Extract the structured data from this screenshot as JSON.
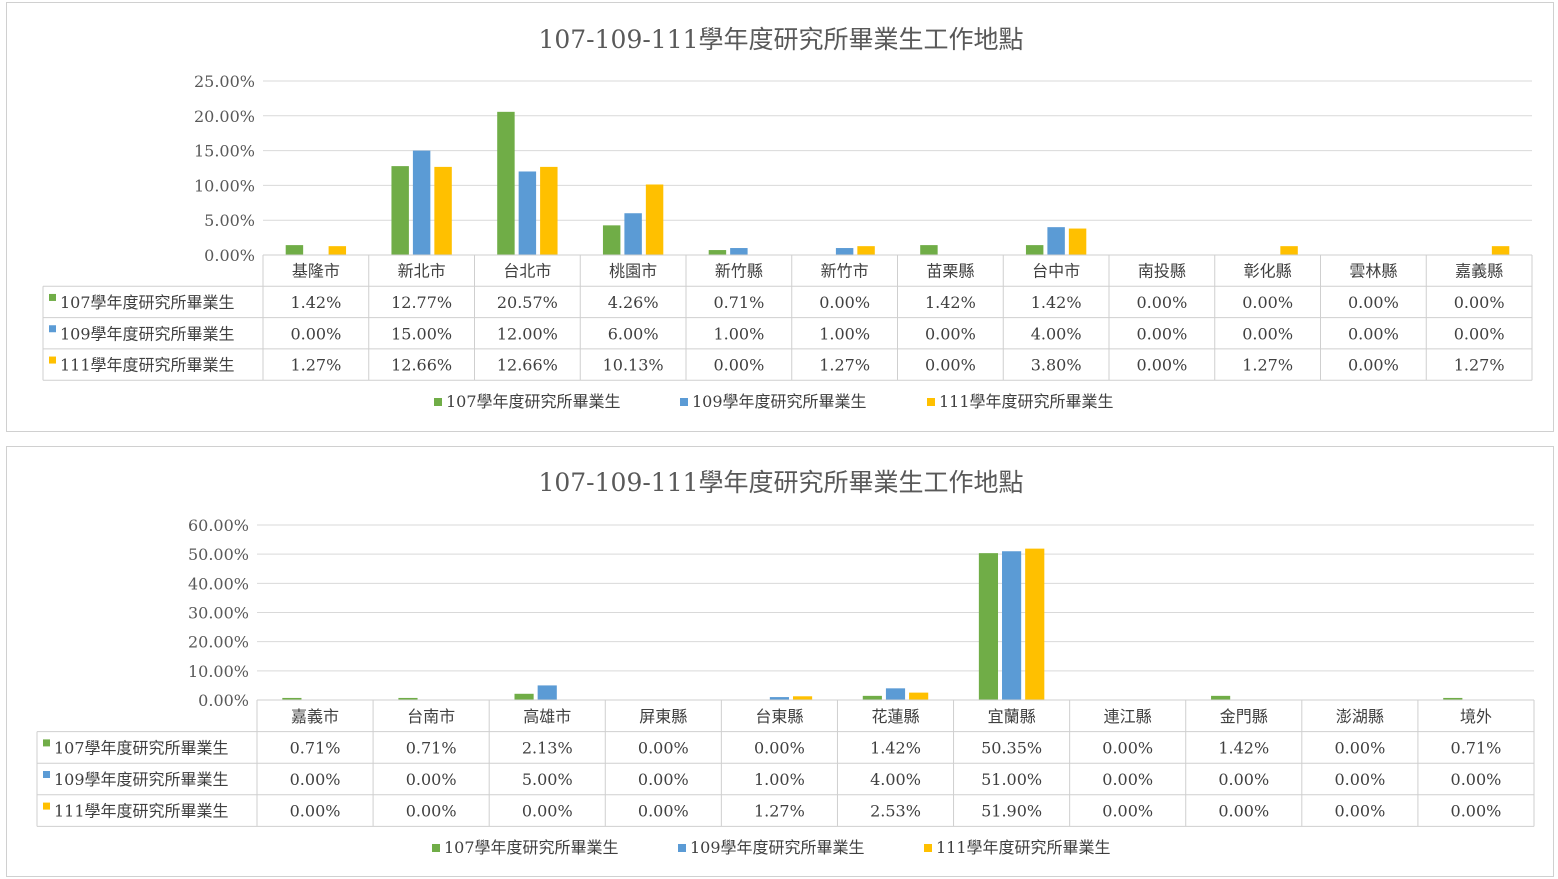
{
  "colors": {
    "s107": "#70AD47",
    "s109": "#5B9BD5",
    "s111": "#FFC000",
    "grid": "#d9d9d9"
  },
  "charts": [
    {
      "title": "107-109-111學年度研究所畢業生工作地點",
      "yticks": [
        "25.00%",
        "20.00%",
        "15.00%",
        "10.00%",
        "5.00%",
        "0.00%"
      ],
      "legend": [
        "107學年度研究所畢業生",
        "109學年度研究所畢業生",
        "111學年度研究所畢業生"
      ],
      "table": [
        [
          "1.42%",
          "12.77%",
          "20.57%",
          "4.26%",
          "0.71%",
          "0.00%",
          "1.42%",
          "1.42%",
          "0.00%",
          "0.00%",
          "0.00%",
          "0.00%"
        ],
        [
          "0.00%",
          "15.00%",
          "12.00%",
          "6.00%",
          "1.00%",
          "1.00%",
          "0.00%",
          "4.00%",
          "0.00%",
          "0.00%",
          "0.00%",
          "0.00%"
        ],
        [
          "1.27%",
          "12.66%",
          "12.66%",
          "10.13%",
          "0.00%",
          "1.27%",
          "0.00%",
          "3.80%",
          "0.00%",
          "1.27%",
          "0.00%",
          "1.27%"
        ]
      ]
    },
    {
      "title": "107-109-111學年度研究所畢業生工作地點",
      "yticks": [
        "60.00%",
        "50.00%",
        "40.00%",
        "30.00%",
        "20.00%",
        "10.00%",
        "0.00%"
      ],
      "legend": [
        "107學年度研究所畢業生",
        "109學年度研究所畢業生",
        "111學年度研究所畢業生"
      ],
      "table": [
        [
          "0.71%",
          "0.71%",
          "2.13%",
          "0.00%",
          "0.00%",
          "1.42%",
          "50.35%",
          "0.00%",
          "1.42%",
          "0.00%",
          "0.71%"
        ],
        [
          "0.00%",
          "0.00%",
          "5.00%",
          "0.00%",
          "1.00%",
          "4.00%",
          "51.00%",
          "0.00%",
          "0.00%",
          "0.00%",
          "0.00%"
        ],
        [
          "0.00%",
          "0.00%",
          "0.00%",
          "0.00%",
          "1.27%",
          "2.53%",
          "51.90%",
          "0.00%",
          "0.00%",
          "0.00%",
          "0.00%"
        ]
      ]
    }
  ],
  "chart_data": [
    {
      "type": "bar",
      "title": "107-109-111學年度研究所畢業生工作地點",
      "categories": [
        "基隆市",
        "新北市",
        "台北市",
        "桃園市",
        "新竹縣",
        "新竹市",
        "苗栗縣",
        "台中市",
        "南投縣",
        "彰化縣",
        "雲林縣",
        "嘉義縣"
      ],
      "ylim": [
        0,
        25
      ],
      "yunit": "%",
      "grid": true,
      "legend_position": "bottom",
      "data_table": true,
      "series": [
        {
          "name": "107學年度研究所畢業生",
          "values": [
            1.42,
            12.77,
            20.57,
            4.26,
            0.71,
            0.0,
            1.42,
            1.42,
            0.0,
            0.0,
            0.0,
            0.0
          ]
        },
        {
          "name": "109學年度研究所畢業生",
          "values": [
            0.0,
            15.0,
            12.0,
            6.0,
            1.0,
            1.0,
            0.0,
            4.0,
            0.0,
            0.0,
            0.0,
            0.0
          ]
        },
        {
          "name": "111學年度研究所畢業生",
          "values": [
            1.27,
            12.66,
            12.66,
            10.13,
            0.0,
            1.27,
            0.0,
            3.8,
            0.0,
            1.27,
            0.0,
            1.27
          ]
        }
      ]
    },
    {
      "type": "bar",
      "title": "107-109-111學年度研究所畢業生工作地點",
      "categories": [
        "嘉義市",
        "台南市",
        "高雄市",
        "屏東縣",
        "台東縣",
        "花蓮縣",
        "宜蘭縣",
        "連江縣",
        "金門縣",
        "澎湖縣",
        "境外"
      ],
      "ylim": [
        0,
        60
      ],
      "yunit": "%",
      "grid": true,
      "legend_position": "bottom",
      "data_table": true,
      "series": [
        {
          "name": "107學年度研究所畢業生",
          "values": [
            0.71,
            0.71,
            2.13,
            0.0,
            0.0,
            1.42,
            50.35,
            0.0,
            1.42,
            0.0,
            0.71
          ]
        },
        {
          "name": "109學年度研究所畢業生",
          "values": [
            0.0,
            0.0,
            5.0,
            0.0,
            1.0,
            4.0,
            51.0,
            0.0,
            0.0,
            0.0,
            0.0
          ]
        },
        {
          "name": "111學年度研究所畢業生",
          "values": [
            0.0,
            0.0,
            0.0,
            0.0,
            1.27,
            2.53,
            51.9,
            0.0,
            0.0,
            0.0,
            0.0
          ]
        }
      ]
    }
  ]
}
